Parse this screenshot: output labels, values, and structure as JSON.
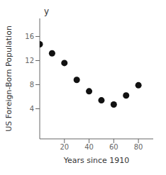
{
  "chart_data": {
    "type": "scatter",
    "x": [
      0,
      10,
      20,
      30,
      40,
      50,
      60,
      70,
      80
    ],
    "values": [
      14.7,
      13.2,
      11.6,
      8.8,
      6.9,
      5.4,
      4.7,
      6.2,
      7.9
    ],
    "xlabel": "Years since 1910",
    "ylabel": "US Foreign-Born Population",
    "annotations": [
      "y"
    ],
    "xlim": [
      0,
      92
    ],
    "ylim": [
      -1,
      19
    ],
    "xticks": [
      20,
      40,
      60,
      80
    ],
    "yticks": [
      4,
      8,
      12,
      16
    ],
    "color": "#111111",
    "marker": "circle",
    "grid": false
  }
}
